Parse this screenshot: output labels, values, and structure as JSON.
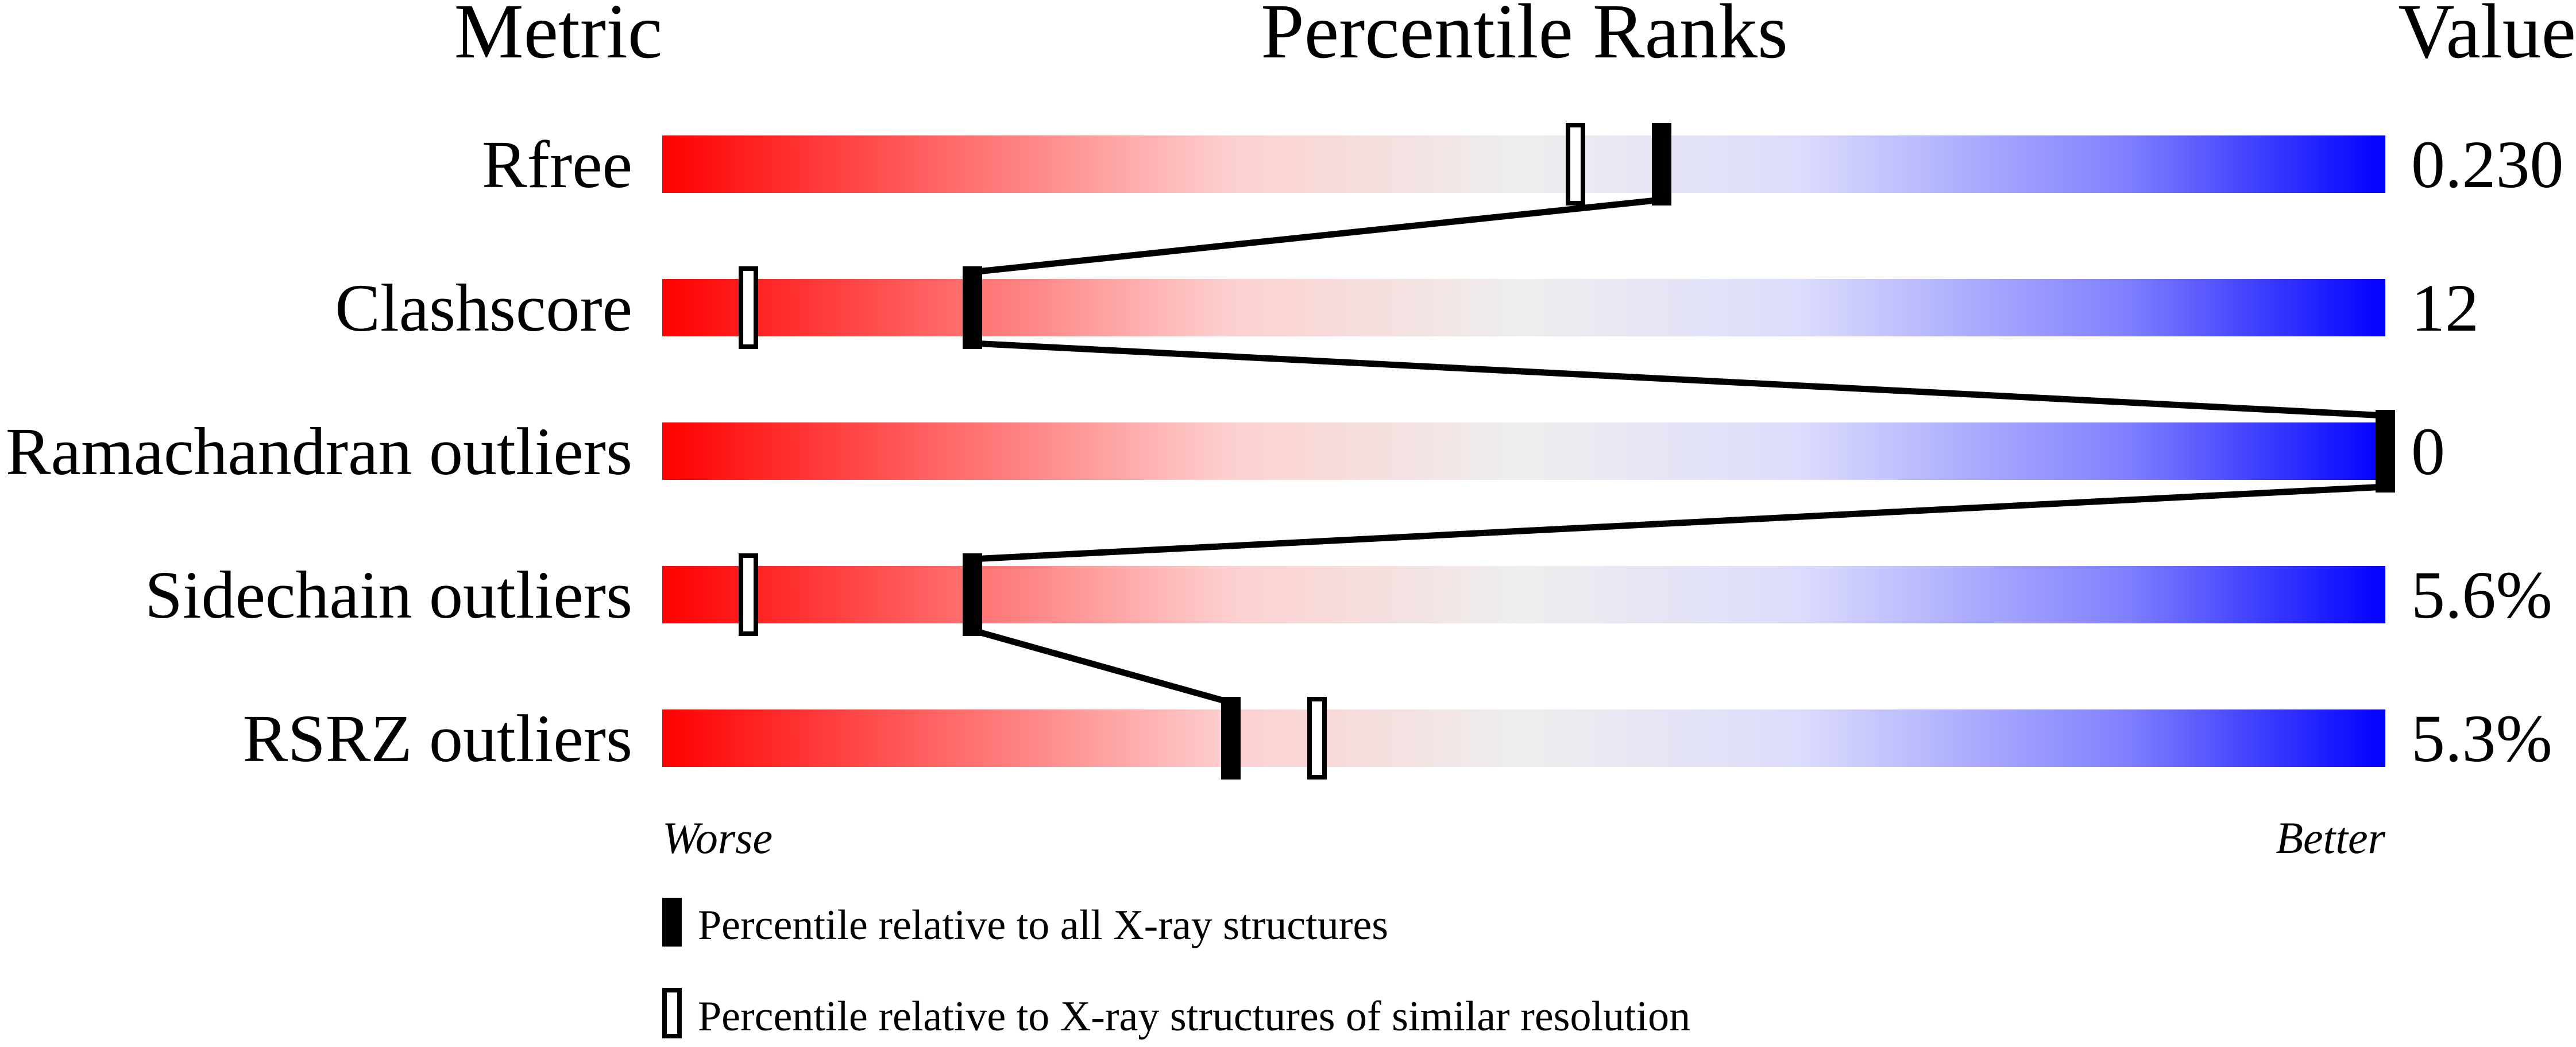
{
  "chart_data": {
    "type": "bar",
    "headers": {
      "metric": "Metric",
      "percentile": "Percentile Ranks",
      "value": "Value"
    },
    "categories": [
      "Rfree",
      "Clashscore",
      "Ramachandran outliers",
      "Sidechain outliers",
      "RSRZ outliers"
    ],
    "values_text": [
      "0.230",
      "12",
      "0",
      "5.6%",
      "5.3%"
    ],
    "series": [
      {
        "name": "Percentile relative to all X-ray structures",
        "marker": "filled",
        "values": [
          58,
          18,
          100,
          18,
          33
        ]
      },
      {
        "name": "Percentile relative to X-ray structures of similar resolution",
        "marker": "open",
        "values": [
          53,
          5,
          null,
          5,
          38
        ]
      }
    ],
    "xlim": [
      0,
      100
    ],
    "axis_words": {
      "left": "Worse",
      "right": "Better"
    },
    "gradient_colors": [
      "#ff0000",
      "#ff6b6b",
      "#fdd0d0",
      "#eeeeee",
      "#dcdcfc",
      "#8080ff",
      "#0000ff"
    ]
  }
}
